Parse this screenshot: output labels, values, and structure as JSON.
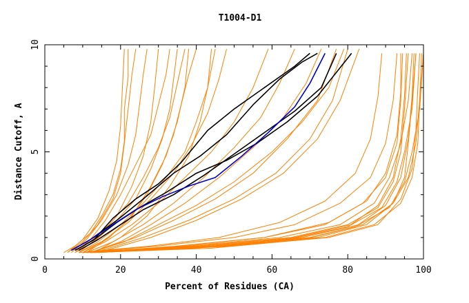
{
  "chart_data": {
    "type": "line",
    "title": "T1004-D1",
    "xlabel": "Percent of Residues (CA)",
    "ylabel": "Distance Cutoff, A",
    "xlim": [
      0,
      100
    ],
    "ylim": [
      0,
      10
    ],
    "x_ticks": [
      0,
      20,
      40,
      60,
      80,
      100
    ],
    "y_ticks": [
      0,
      5,
      10
    ],
    "x_minor_step": 5,
    "y_minor_step": 1,
    "grid": false,
    "colors": {
      "orange": "#ff8000",
      "black": "#000000",
      "blue": "#0000cc"
    },
    "series": [
      {
        "color": "orange",
        "x": [
          5,
          8,
          12,
          15,
          18,
          20,
          21,
          21,
          22,
          22
        ],
        "y": [
          0.3,
          0.6,
          1.2,
          2.0,
          3.0,
          4.2,
          5.5,
          7.0,
          8.5,
          9.8
        ]
      },
      {
        "color": "orange",
        "x": [
          6,
          10,
          14,
          18,
          20,
          21,
          22,
          23,
          24
        ],
        "y": [
          0.3,
          0.8,
          1.6,
          2.8,
          4.0,
          5.4,
          7.0,
          8.6,
          9.8
        ]
      },
      {
        "color": "orange",
        "x": [
          7,
          11,
          15,
          19,
          22,
          24,
          25,
          26,
          27
        ],
        "y": [
          0.3,
          0.9,
          1.8,
          3.0,
          4.4,
          5.8,
          7.2,
          8.6,
          9.8
        ]
      },
      {
        "color": "orange",
        "x": [
          6,
          10,
          14,
          17,
          19,
          20,
          20.5,
          21
        ],
        "y": [
          0.3,
          0.9,
          1.9,
          3.2,
          4.6,
          6.2,
          8.0,
          9.8
        ]
      },
      {
        "color": "orange",
        "x": [
          8,
          12,
          17,
          22,
          26,
          30,
          33,
          35,
          37
        ],
        "y": [
          0.3,
          0.8,
          1.6,
          2.6,
          3.8,
          5.2,
          6.6,
          8.2,
          9.8
        ]
      },
      {
        "color": "orange",
        "x": [
          8,
          13,
          18,
          24,
          28,
          31,
          33,
          34,
          35
        ],
        "y": [
          0.3,
          0.8,
          1.6,
          2.8,
          4.2,
          5.6,
          7.0,
          8.4,
          9.8
        ]
      },
      {
        "color": "orange",
        "x": [
          9,
          14,
          20,
          26,
          32,
          37,
          40,
          43,
          45
        ],
        "y": [
          0.3,
          0.8,
          1.6,
          2.6,
          3.8,
          5.0,
          6.4,
          8.0,
          9.8
        ]
      },
      {
        "color": "orange",
        "x": [
          9,
          15,
          22,
          28,
          34,
          39,
          43,
          46,
          48
        ],
        "y": [
          0.3,
          0.8,
          1.7,
          2.8,
          4.0,
          5.4,
          6.8,
          8.4,
          9.8
        ]
      },
      {
        "color": "orange",
        "x": [
          10,
          16,
          23,
          30,
          37,
          44,
          50,
          55,
          59
        ],
        "y": [
          0.3,
          0.8,
          1.6,
          2.6,
          3.8,
          5.0,
          6.4,
          8.0,
          9.8
        ]
      },
      {
        "color": "orange",
        "x": [
          10,
          16,
          22,
          27,
          31,
          34,
          36,
          38,
          40
        ],
        "y": [
          0.3,
          0.9,
          1.8,
          3.0,
          4.4,
          5.8,
          7.2,
          8.6,
          9.8
        ]
      },
      {
        "color": "orange",
        "x": [
          8,
          12,
          16,
          20,
          24,
          28,
          30,
          32,
          33
        ],
        "y": [
          0.3,
          0.9,
          1.8,
          3.0,
          4.4,
          5.8,
          7.2,
          8.6,
          9.8
        ]
      },
      {
        "color": "orange",
        "x": [
          11,
          18,
          26,
          34,
          42,
          50,
          57,
          62,
          66
        ],
        "y": [
          0.3,
          0.8,
          1.6,
          2.6,
          3.8,
          5.2,
          6.6,
          8.2,
          9.8
        ]
      },
      {
        "color": "orange",
        "x": [
          12,
          20,
          28,
          37,
          46,
          55,
          63,
          69,
          73
        ],
        "y": [
          0.3,
          0.8,
          1.6,
          2.6,
          3.8,
          5.2,
          6.6,
          8.2,
          9.8
        ]
      },
      {
        "color": "orange",
        "x": [
          12,
          21,
          30,
          40,
          50,
          60,
          68,
          75,
          79
        ],
        "y": [
          0.3,
          0.8,
          1.6,
          2.5,
          3.6,
          5.0,
          6.4,
          8.0,
          9.8
        ]
      },
      {
        "color": "orange",
        "x": [
          11,
          17,
          23,
          28,
          32,
          35,
          37,
          38
        ],
        "y": [
          0.3,
          1.0,
          2.0,
          3.4,
          4.8,
          6.4,
          8.0,
          9.8
        ]
      },
      {
        "color": "orange",
        "x": [
          14,
          24,
          34,
          45,
          55,
          64,
          72,
          77
        ],
        "y": [
          0.4,
          1.0,
          1.8,
          2.8,
          4.0,
          5.6,
          7.4,
          9.8
        ]
      },
      {
        "color": "orange",
        "x": [
          15,
          26,
          38,
          50,
          61,
          70,
          76,
          80
        ],
        "y": [
          0.4,
          1.0,
          1.8,
          2.8,
          4.0,
          5.6,
          7.4,
          9.8
        ]
      },
      {
        "color": "orange",
        "x": [
          16,
          28,
          40,
          52,
          63,
          72,
          78,
          83
        ],
        "y": [
          0.4,
          1.0,
          1.8,
          2.8,
          4.0,
          5.6,
          7.4,
          9.8
        ]
      },
      {
        "color": "orange",
        "x": [
          13,
          20,
          27,
          33,
          38,
          41,
          43,
          44
        ],
        "y": [
          0.3,
          1.0,
          2.0,
          3.4,
          4.8,
          6.4,
          8.0,
          9.8
        ]
      },
      {
        "color": "orange",
        "x": [
          9,
          14,
          19,
          23,
          26,
          28,
          29,
          30
        ],
        "y": [
          0.3,
          1.0,
          2.0,
          3.4,
          4.8,
          6.4,
          8.0,
          9.8
        ]
      },
      {
        "color": "orange",
        "x": [
          10,
          40,
          65,
          80,
          88,
          92,
          94,
          95,
          96
        ],
        "y": [
          0.3,
          0.6,
          1.0,
          1.6,
          2.4,
          3.6,
          5.0,
          7.0,
          9.6
        ]
      },
      {
        "color": "orange",
        "x": [
          11,
          42,
          66,
          81,
          89,
          93,
          95,
          97,
          98
        ],
        "y": [
          0.3,
          0.6,
          1.0,
          1.6,
          2.4,
          3.6,
          5.0,
          7.0,
          9.6
        ]
      },
      {
        "color": "orange",
        "x": [
          12,
          44,
          68,
          83,
          91,
          95,
          97,
          99,
          100
        ],
        "y": [
          0.3,
          0.6,
          1.0,
          1.6,
          2.4,
          3.6,
          5.0,
          7.0,
          9.6
        ]
      },
      {
        "color": "orange",
        "x": [
          12,
          45,
          70,
          84,
          92,
          96,
          98,
          99,
          100
        ],
        "y": [
          0.3,
          0.6,
          1.0,
          1.6,
          2.6,
          3.8,
          5.4,
          7.4,
          9.6
        ]
      },
      {
        "color": "orange",
        "x": [
          10,
          38,
          62,
          78,
          87,
          91,
          94,
          96,
          97
        ],
        "y": [
          0.3,
          0.6,
          1.0,
          1.6,
          2.6,
          3.8,
          5.4,
          7.4,
          9.6
        ]
      },
      {
        "color": "orange",
        "x": [
          13,
          46,
          72,
          85,
          92,
          95,
          96,
          97,
          98
        ],
        "y": [
          0.3,
          0.6,
          1.0,
          1.6,
          2.6,
          3.8,
          5.4,
          7.4,
          9.6
        ]
      },
      {
        "color": "orange",
        "x": [
          11,
          35,
          58,
          74,
          84,
          90,
          93,
          94,
          94.5
        ],
        "y": [
          0.3,
          0.6,
          1.0,
          1.6,
          2.6,
          3.8,
          5.4,
          7.4,
          9.6
        ]
      },
      {
        "color": "orange",
        "x": [
          12,
          48,
          74,
          87,
          94,
          97,
          98.5,
          99,
          99.5
        ],
        "y": [
          0.3,
          0.6,
          1.0,
          1.6,
          2.6,
          3.8,
          5.4,
          7.4,
          9.6
        ]
      },
      {
        "color": "orange",
        "x": [
          14,
          50,
          75,
          88,
          94,
          97,
          98,
          98.5,
          99
        ],
        "y": [
          0.3,
          0.6,
          1.0,
          1.6,
          2.8,
          4.2,
          6.0,
          8.0,
          9.6
        ]
      },
      {
        "color": "orange",
        "x": [
          10,
          30,
          50,
          66,
          78,
          86,
          90,
          92,
          93
        ],
        "y": [
          0.3,
          0.6,
          1.0,
          1.6,
          2.6,
          3.8,
          5.4,
          7.4,
          9.6
        ]
      },
      {
        "color": "orange",
        "x": [
          12,
          40,
          64,
          80,
          88,
          92,
          94,
          95,
          95.5
        ],
        "y": [
          0.3,
          0.5,
          0.9,
          1.5,
          2.5,
          3.8,
          5.6,
          7.6,
          9.6
        ]
      },
      {
        "color": "orange",
        "x": [
          13,
          44,
          68,
          82,
          90,
          94,
          96,
          97,
          97.5
        ],
        "y": [
          0.3,
          0.5,
          0.9,
          1.5,
          2.5,
          3.8,
          5.6,
          7.6,
          9.6
        ]
      },
      {
        "color": "orange",
        "x": [
          9,
          28,
          46,
          62,
          74,
          82,
          86,
          88,
          89
        ],
        "y": [
          0.3,
          0.6,
          1.0,
          1.7,
          2.7,
          4.0,
          5.6,
          7.6,
          9.6
        ]
      },
      {
        "color": "orange",
        "x": [
          11,
          36,
          58,
          75,
          85,
          90,
          93,
          94,
          94
        ],
        "y": [
          0.3,
          0.6,
          1.0,
          1.7,
          2.7,
          4.0,
          5.8,
          7.8,
          9.6
        ]
      },
      {
        "color": "black",
        "x": [
          7,
          12,
          19,
          26,
          34,
          41,
          48,
          55,
          62,
          68,
          72
        ],
        "y": [
          0.4,
          0.9,
          1.8,
          2.8,
          4.0,
          4.8,
          5.8,
          7.2,
          8.4,
          9.2,
          9.6
        ]
      },
      {
        "color": "black",
        "x": [
          8,
          13,
          18,
          24,
          30,
          36,
          43,
          50,
          58,
          66,
          70
        ],
        "y": [
          0.4,
          0.9,
          1.9,
          2.8,
          3.5,
          4.5,
          6.0,
          7.0,
          8.0,
          9.0,
          9.6
        ]
      },
      {
        "color": "black",
        "x": [
          9,
          14,
          20,
          26,
          34,
          42,
          50,
          58,
          66,
          73,
          77
        ],
        "y": [
          0.4,
          0.9,
          1.6,
          2.3,
          3.0,
          3.9,
          4.9,
          5.9,
          6.9,
          8.0,
          9.6
        ]
      },
      {
        "color": "black",
        "x": [
          8,
          13,
          19,
          25,
          32,
          40,
          48,
          56,
          64,
          72,
          81
        ],
        "y": [
          0.4,
          0.9,
          1.7,
          2.4,
          3.1,
          4.0,
          4.6,
          5.4,
          6.4,
          7.6,
          9.6
        ]
      },
      {
        "color": "blue",
        "x": [
          7,
          12,
          18,
          24,
          31,
          38,
          45,
          52,
          59,
          66,
          70,
          74
        ],
        "y": [
          0.4,
          0.9,
          1.6,
          2.3,
          2.9,
          3.4,
          3.8,
          4.8,
          5.9,
          7.1,
          8.2,
          9.6
        ]
      }
    ]
  }
}
